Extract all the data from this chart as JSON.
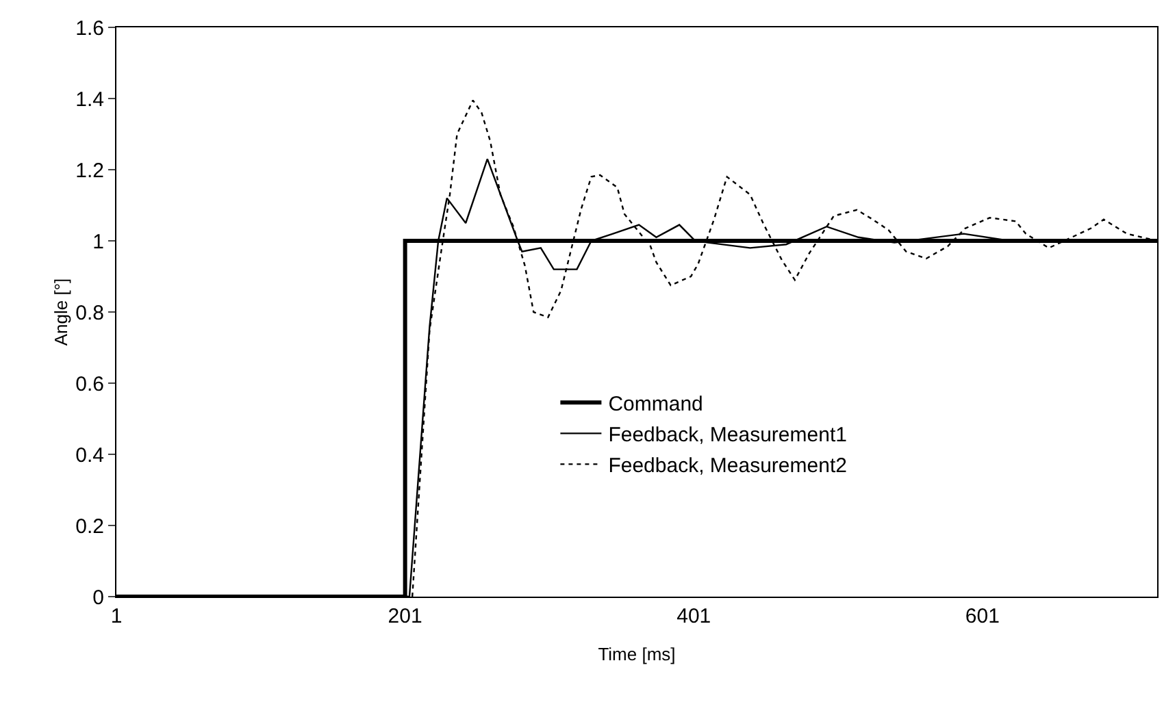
{
  "chart_data": {
    "type": "line",
    "xlabel": "Time [ms]",
    "ylabel": "Angle [°]",
    "xlim": [
      1,
      722
    ],
    "xticks": [
      1,
      201,
      401,
      601
    ],
    "ylim": [
      0,
      1.6
    ],
    "yticks": [
      0,
      0.2,
      0.4,
      0.6,
      0.8,
      1,
      1.2,
      1.4,
      1.6
    ],
    "grid": false,
    "legend": "center",
    "marker": "none",
    "series": [
      {
        "name": "Command",
        "color": "#000000",
        "line_style": "solid",
        "x": [
          1,
          201,
          201,
          722
        ],
        "values": [
          0,
          0,
          1,
          1
        ]
      },
      {
        "name": "Feedback, Measurement1",
        "color": "#000000",
        "line_style": "solid",
        "x": [
          1,
          204,
          218,
          224,
          230,
          243,
          258,
          279,
          282,
          295,
          304,
          320,
          330,
          345,
          363,
          375,
          391,
          402,
          411,
          440,
          465,
          493,
          515,
          540,
          588,
          620,
          722
        ],
        "values": [
          0,
          0,
          0.76,
          1.0,
          1.12,
          1.05,
          1.23,
          1.0,
          0.97,
          0.98,
          0.92,
          0.92,
          1.0,
          1.02,
          1.045,
          1.01,
          1.045,
          1.0,
          0.995,
          0.98,
          0.99,
          1.04,
          1.01,
          0.995,
          1.02,
          1.0,
          1.0
        ]
      },
      {
        "name": "Feedback, Measurement2",
        "color": "#000000",
        "line_style": "dotted",
        "x": [
          1,
          206,
          218,
          226,
          232,
          237,
          248,
          254,
          260,
          267,
          276,
          284,
          290,
          300,
          309,
          323,
          330,
          336,
          348,
          353,
          371,
          375,
          385,
          399,
          404,
          415,
          424,
          440,
          449,
          462,
          471,
          481,
          498,
          514,
          525,
          536,
          548,
          562,
          577,
          589,
          606,
          624,
          631,
          647,
          676,
          685,
          701,
          722
        ],
        "values": [
          0,
          0,
          0.75,
          0.97,
          1.13,
          1.3,
          1.395,
          1.36,
          1.28,
          1.13,
          1.04,
          0.93,
          0.8,
          0.785,
          0.86,
          1.09,
          1.18,
          1.185,
          1.15,
          1.075,
          0.985,
          0.94,
          0.875,
          0.9,
          0.935,
          1.06,
          1.18,
          1.13,
          1.05,
          0.946,
          0.89,
          0.965,
          1.07,
          1.087,
          1.06,
          1.03,
          0.97,
          0.95,
          0.985,
          1.035,
          1.065,
          1.055,
          1.02,
          0.98,
          1.035,
          1.06,
          1.02,
          1.0
        ]
      }
    ]
  }
}
